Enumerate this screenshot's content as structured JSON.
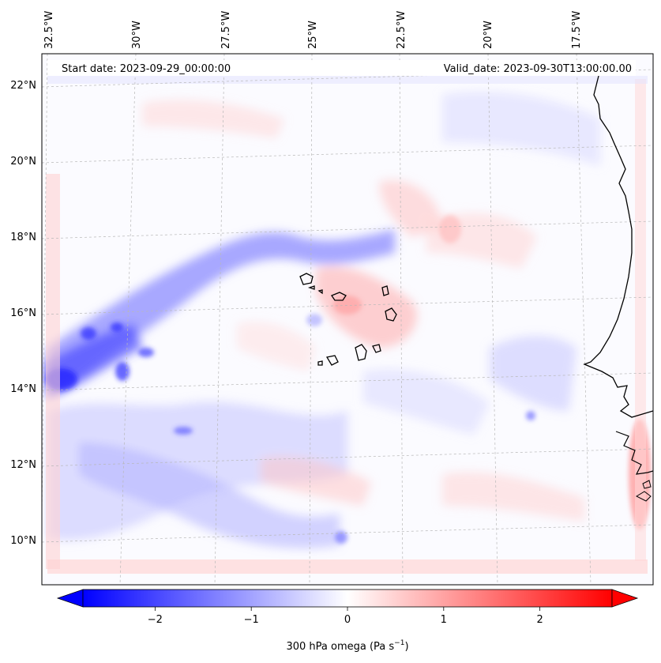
{
  "map": {
    "start_label": "Start date: 2023-09-29_00:00:00",
    "valid_label": "Valid_date: 2023-09-30T13:00:00.00",
    "lon_labels": [
      "32.5°W",
      "30°W",
      "27.5°W",
      "25°W",
      "22.5°W",
      "20°W",
      "17.5°W"
    ],
    "lat_labels": [
      "22°N",
      "20°N",
      "18°N",
      "16°N",
      "14°N",
      "12°N",
      "10°N"
    ],
    "field_variable": "300 hPa omega",
    "colormap": {
      "negative": "#0000ff",
      "zero": "#ffffff",
      "positive": "#ff0000"
    }
  },
  "colorbar": {
    "tick_values": [
      -2,
      -1,
      0,
      1,
      2
    ],
    "tick_labels": [
      "−2",
      "−1",
      "0",
      "1",
      "2"
    ],
    "vmin": -2.75,
    "vmax": 2.75,
    "units_label": "300 hPa omega (Pa s",
    "units_superscript": "−1",
    "units_close": ")"
  }
}
